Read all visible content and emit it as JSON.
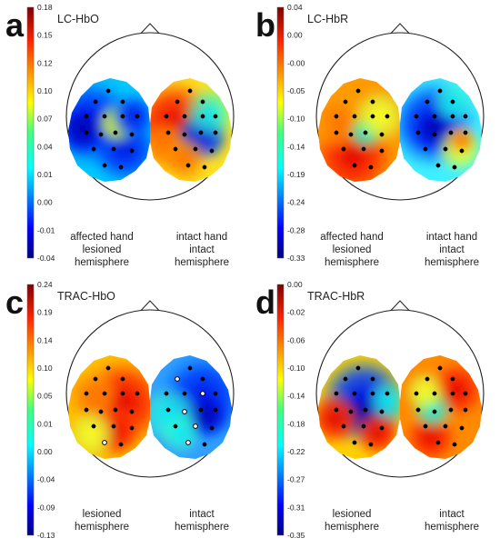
{
  "panels": [
    {
      "id": "a",
      "letter": "a",
      "title": "LC-HbO",
      "ticks": [
        "0.18",
        "0.15",
        "0.12",
        "0.10",
        "0.07",
        "0.04",
        "0.01",
        "0.00",
        "-0.01",
        "-0.04"
      ],
      "left_caption": [
        "affected hand",
        "lesioned",
        "hemisphere"
      ],
      "right_caption": [
        "intact hand",
        "intact",
        "hemisphere"
      ]
    },
    {
      "id": "b",
      "letter": "b",
      "title": "LC-HbR",
      "ticks": [
        "0.04",
        "0.00",
        "-0.00",
        "-0.05",
        "-0.10",
        "-0.14",
        "-0.19",
        "-0.24",
        "-0.28",
        "-0.33"
      ],
      "left_caption": [
        "affected hand",
        "lesioned",
        "hemisphere"
      ],
      "right_caption": [
        "intact hand",
        "intact",
        "hemisphere"
      ]
    },
    {
      "id": "c",
      "letter": "c",
      "title": "TRAC-HbO",
      "ticks": [
        "0.24",
        "0.19",
        "0.14",
        "0.10",
        "0.05",
        "0.01",
        "0.00",
        "-0.04",
        "-0.09",
        "-0.13"
      ],
      "left_caption": [
        "lesioned",
        "hemisphere"
      ],
      "right_caption": [
        "intact",
        "hemisphere"
      ]
    },
    {
      "id": "d",
      "letter": "d",
      "title": "TRAC-HbR",
      "ticks": [
        "0.00",
        "-0.02",
        "-0.06",
        "-0.10",
        "-0.14",
        "-0.18",
        "-0.22",
        "-0.27",
        "-0.31",
        "-0.35"
      ],
      "left_caption": [
        "lesioned",
        "hemisphere"
      ],
      "right_caption": [
        "intact",
        "hemisphere"
      ]
    }
  ],
  "colormap": "jet"
}
